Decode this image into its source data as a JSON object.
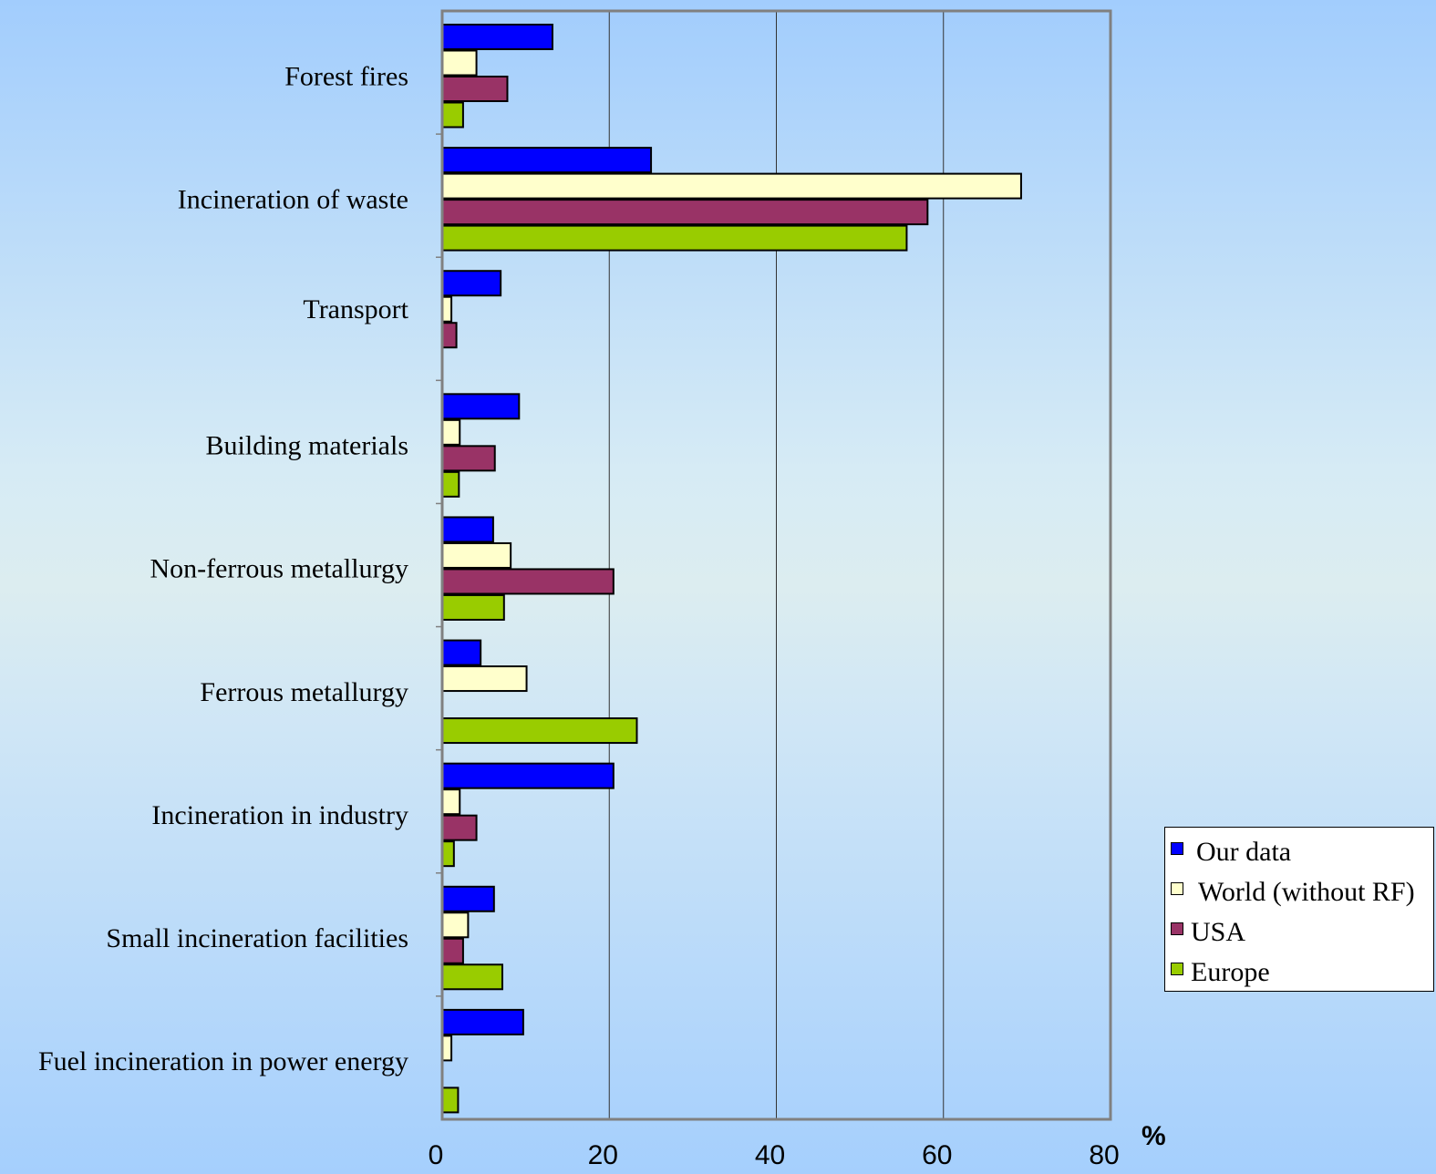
{
  "chart_data": {
    "type": "bar",
    "orientation": "horizontal",
    "categories": [
      "Forest fires",
      "Incineration of waste",
      "Transport",
      "Building materials",
      "Non-ferrous metallurgy",
      "Ferrous metallurgy",
      "Incineration in industry",
      "Small incineration facilities",
      "Fuel incineration in power energy"
    ],
    "series": [
      {
        "name": "Our data",
        "color": "#0000ff",
        "values": [
          13.2,
          25,
          7,
          9.2,
          6.1,
          4.6,
          20.5,
          6.2,
          9.7
        ]
      },
      {
        "name": "World (without RF)",
        "color": "#ffffcc",
        "values": [
          4.1,
          69.3,
          1.1,
          2.1,
          8.2,
          10.1,
          2.1,
          3.1,
          1.1
        ]
      },
      {
        "name": "USA",
        "color": "#993366",
        "values": [
          7.8,
          58.1,
          1.7,
          6.3,
          20.5,
          null,
          4.1,
          2.5,
          null
        ]
      },
      {
        "name": "Europe",
        "color": "#99cc00",
        "values": [
          2.5,
          55.6,
          null,
          2,
          7.4,
          23.3,
          1.4,
          7.2,
          1.9
        ]
      }
    ],
    "xlabel": "%",
    "ylabel": "",
    "xlim": [
      0,
      80
    ],
    "x_ticks": [
      "0",
      "20",
      "40",
      "60",
      "80"
    ],
    "grid": true,
    "legend_position": "right"
  }
}
